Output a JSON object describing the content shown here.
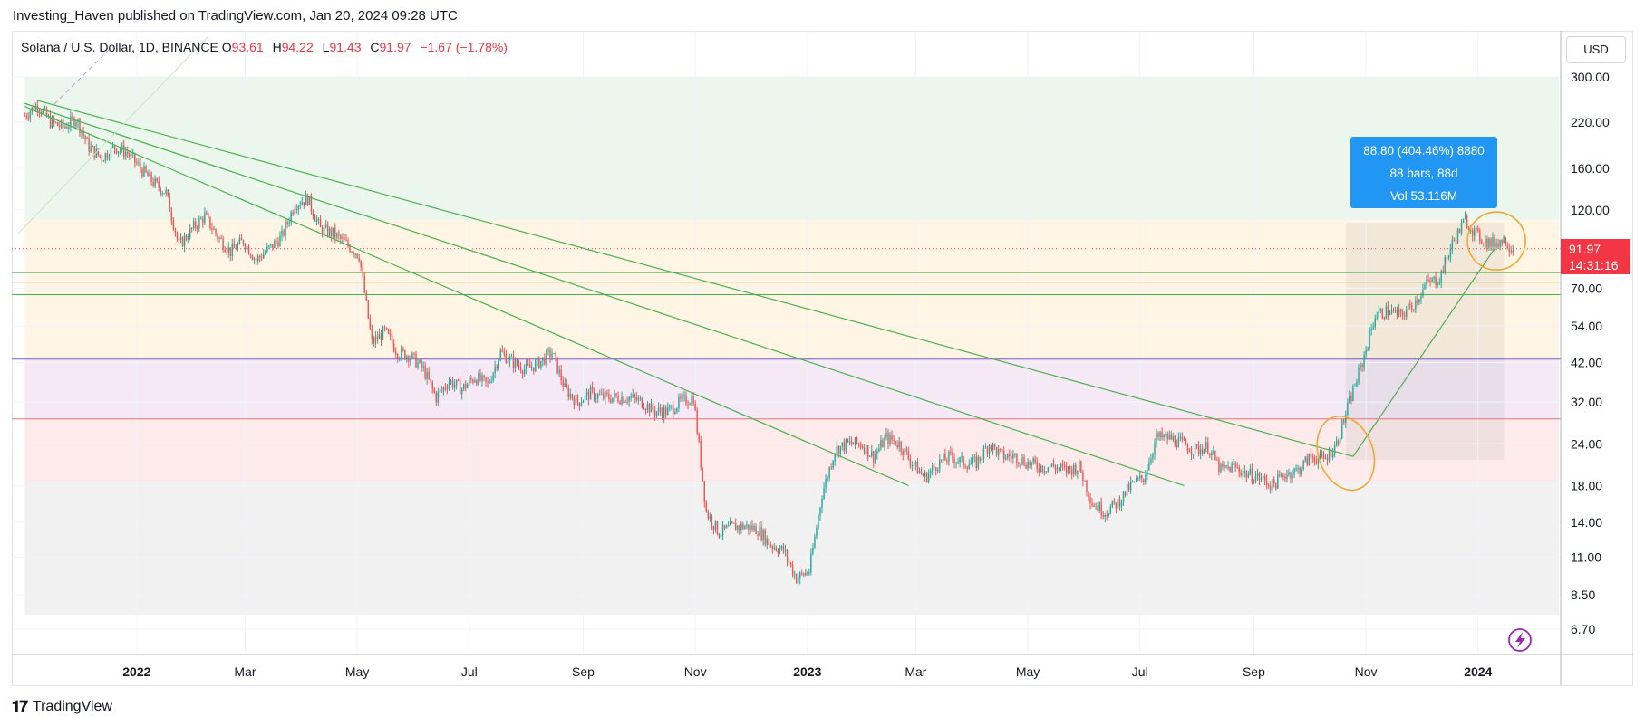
{
  "header": {
    "publisher_line": "Investing_Haven published on TradingView.com, Jan 20, 2024 09:28 UTC"
  },
  "legend": {
    "symbol": "Solana / U.S. Dollar, 1D, BINANCE",
    "open_label": "O",
    "open": "93.61",
    "high_label": "H",
    "high": "94.22",
    "low_label": "L",
    "low": "91.43",
    "close_label": "C",
    "close": "91.97",
    "change": "−1.67 (−1.78%)"
  },
  "currency_button": "USD",
  "price_tag": {
    "price": "91.97",
    "countdown": "14:31:16"
  },
  "measure_tooltip": {
    "line1": "88.80 (404.46%) 8880",
    "line2": "88 bars, 88d",
    "line3": "Vol 53.116M"
  },
  "footer": {
    "brand": "TradingView",
    "logo_icon": "tradingview-logo-icon"
  },
  "colors": {
    "up": "#26a69a",
    "down": "#ef5350",
    "accent": "#2196f3",
    "trendline": "#4caf50",
    "circle": "#f0a830",
    "price_tag": "#f23645"
  },
  "chart_data": {
    "type": "candlestick",
    "scale": "log",
    "title": "Solana / U.S. Dollar, 1D, BINANCE",
    "ylim": [
      6.2,
      330
    ],
    "y_ticks": [
      "300.00",
      "220.00",
      "160.00",
      "120.00",
      "70.00",
      "54.00",
      "42.00",
      "32.00",
      "24.00",
      "18.00",
      "14.00",
      "11.00",
      "8.50",
      "6.70"
    ],
    "x_ticks": [
      "2022",
      "Mar",
      "May",
      "Jul",
      "Sep",
      "Nov",
      "2023",
      "Mar",
      "May",
      "Jul",
      "Sep",
      "Nov",
      "2024"
    ],
    "x_range": [
      "2021-10-25",
      "2024-02-15"
    ],
    "grid": true,
    "series": [
      {
        "type": "close_path",
        "points": [
          [
            "2021-11-01",
            230
          ],
          [
            "2021-11-08",
            248
          ],
          [
            "2021-11-15",
            220
          ],
          [
            "2021-11-22",
            212
          ],
          [
            "2021-11-29",
            225
          ],
          [
            "2021-12-06",
            185
          ],
          [
            "2021-12-13",
            172
          ],
          [
            "2021-12-20",
            185
          ],
          [
            "2021-12-27",
            178
          ],
          [
            "2022-01-03",
            160
          ],
          [
            "2022-01-10",
            145
          ],
          [
            "2022-01-17",
            135
          ],
          [
            "2022-01-24",
            94
          ],
          [
            "2022-01-31",
            105
          ],
          [
            "2022-02-07",
            115
          ],
          [
            "2022-02-14",
            100
          ],
          [
            "2022-02-21",
            90
          ],
          [
            "2022-02-28",
            97
          ],
          [
            "2022-03-07",
            85
          ],
          [
            "2022-03-14",
            92
          ],
          [
            "2022-03-21",
            100
          ],
          [
            "2022-03-28",
            125
          ],
          [
            "2022-04-04",
            130
          ],
          [
            "2022-04-11",
            105
          ],
          [
            "2022-04-18",
            102
          ],
          [
            "2022-04-25",
            95
          ],
          [
            "2022-05-02",
            88
          ],
          [
            "2022-05-09",
            48
          ],
          [
            "2022-05-16",
            52
          ],
          [
            "2022-05-23",
            45
          ],
          [
            "2022-05-30",
            44
          ],
          [
            "2022-06-06",
            40
          ],
          [
            "2022-06-13",
            33
          ],
          [
            "2022-06-20",
            37
          ],
          [
            "2022-06-27",
            35
          ],
          [
            "2022-07-04",
            38
          ],
          [
            "2022-07-11",
            36
          ],
          [
            "2022-07-18",
            45
          ],
          [
            "2022-07-25",
            42
          ],
          [
            "2022-08-01",
            40
          ],
          [
            "2022-08-08",
            42
          ],
          [
            "2022-08-15",
            45
          ],
          [
            "2022-08-22",
            35
          ],
          [
            "2022-08-29",
            32
          ],
          [
            "2022-09-05",
            34
          ],
          [
            "2022-09-12",
            33
          ],
          [
            "2022-09-19",
            33
          ],
          [
            "2022-09-26",
            33
          ],
          [
            "2022-10-03",
            32
          ],
          [
            "2022-10-10",
            30
          ],
          [
            "2022-10-17",
            30
          ],
          [
            "2022-10-24",
            32
          ],
          [
            "2022-10-31",
            33
          ],
          [
            "2022-11-07",
            15
          ],
          [
            "2022-11-14",
            13
          ],
          [
            "2022-11-21",
            13.5
          ],
          [
            "2022-11-28",
            13.6
          ],
          [
            "2022-12-05",
            13.3
          ],
          [
            "2022-12-12",
            12
          ],
          [
            "2022-12-19",
            11.5
          ],
          [
            "2022-12-26",
            9.5
          ],
          [
            "2023-01-02",
            10
          ],
          [
            "2023-01-09",
            17
          ],
          [
            "2023-01-16",
            23
          ],
          [
            "2023-01-23",
            24
          ],
          [
            "2023-01-30",
            24
          ],
          [
            "2023-02-06",
            22
          ],
          [
            "2023-02-13",
            25
          ],
          [
            "2023-02-20",
            24
          ],
          [
            "2023-02-27",
            21
          ],
          [
            "2023-03-06",
            19
          ],
          [
            "2023-03-13",
            21
          ],
          [
            "2023-03-20",
            22
          ],
          [
            "2023-03-27",
            21
          ],
          [
            "2023-04-03",
            21
          ],
          [
            "2023-04-10",
            24
          ],
          [
            "2023-04-17",
            22
          ],
          [
            "2023-04-24",
            22
          ],
          [
            "2023-05-01",
            21
          ],
          [
            "2023-05-08",
            20.5
          ],
          [
            "2023-05-15",
            20.5
          ],
          [
            "2023-05-22",
            20
          ],
          [
            "2023-05-29",
            20.5
          ],
          [
            "2023-06-05",
            16
          ],
          [
            "2023-06-12",
            15
          ],
          [
            "2023-06-19",
            16
          ],
          [
            "2023-06-26",
            18
          ],
          [
            "2023-07-03",
            19
          ],
          [
            "2023-07-10",
            25
          ],
          [
            "2023-07-17",
            25
          ],
          [
            "2023-07-24",
            24
          ],
          [
            "2023-07-31",
            23
          ],
          [
            "2023-08-07",
            23.5
          ],
          [
            "2023-08-14",
            20
          ],
          [
            "2023-08-21",
            20.5
          ],
          [
            "2023-08-28",
            19.5
          ],
          [
            "2023-09-04",
            19
          ],
          [
            "2023-09-11",
            18
          ],
          [
            "2023-09-18",
            19.5
          ],
          [
            "2023-09-25",
            20
          ],
          [
            "2023-10-02",
            22
          ],
          [
            "2023-10-09",
            21.5
          ],
          [
            "2023-10-16",
            24
          ],
          [
            "2023-10-23",
            32
          ],
          [
            "2023-10-30",
            42
          ],
          [
            "2023-11-06",
            58
          ],
          [
            "2023-11-13",
            60
          ],
          [
            "2023-11-20",
            58
          ],
          [
            "2023-11-27",
            63
          ],
          [
            "2023-12-04",
            72
          ],
          [
            "2023-12-11",
            75
          ],
          [
            "2023-12-18",
            95
          ],
          [
            "2023-12-25",
            112
          ],
          [
            "2024-01-01",
            100
          ],
          [
            "2024-01-08",
            95
          ],
          [
            "2024-01-15",
            98
          ],
          [
            "2024-01-20",
            92
          ]
        ]
      }
    ],
    "horizontal_levels": [
      {
        "price": 78,
        "color": "#4caf50"
      },
      {
        "price": 73,
        "color": "#f0a830"
      },
      {
        "price": 67,
        "color": "#4caf50"
      },
      {
        "price": 43,
        "color": "#7e57c2"
      },
      {
        "price": 28.5,
        "color": "#e57373"
      }
    ],
    "trendlines": [
      {
        "from": [
          "2021-11-08",
          255
        ],
        "to": [
          "2023-10-25",
          22
        ]
      },
      {
        "from": [
          "2021-11-01",
          250
        ],
        "to": [
          "2023-07-25",
          18
        ]
      },
      {
        "from": [
          "2021-11-01",
          245
        ],
        "to": [
          "2023-02-25",
          18
        ]
      },
      {
        "from": [
          "2023-10-25",
          22
        ],
        "to": [
          "2024-01-10",
          92
        ]
      }
    ],
    "measure_box": {
      "from": [
        "2023-10-21",
        21.5
      ],
      "to": [
        "2024-01-15",
        110
      ]
    },
    "annotations": [
      {
        "type": "ellipse",
        "at": [
          "2023-10-21",
          22.5
        ]
      },
      {
        "type": "ellipse",
        "at": [
          "2024-01-11",
          97
        ]
      }
    ],
    "last_price": 91.97
  }
}
